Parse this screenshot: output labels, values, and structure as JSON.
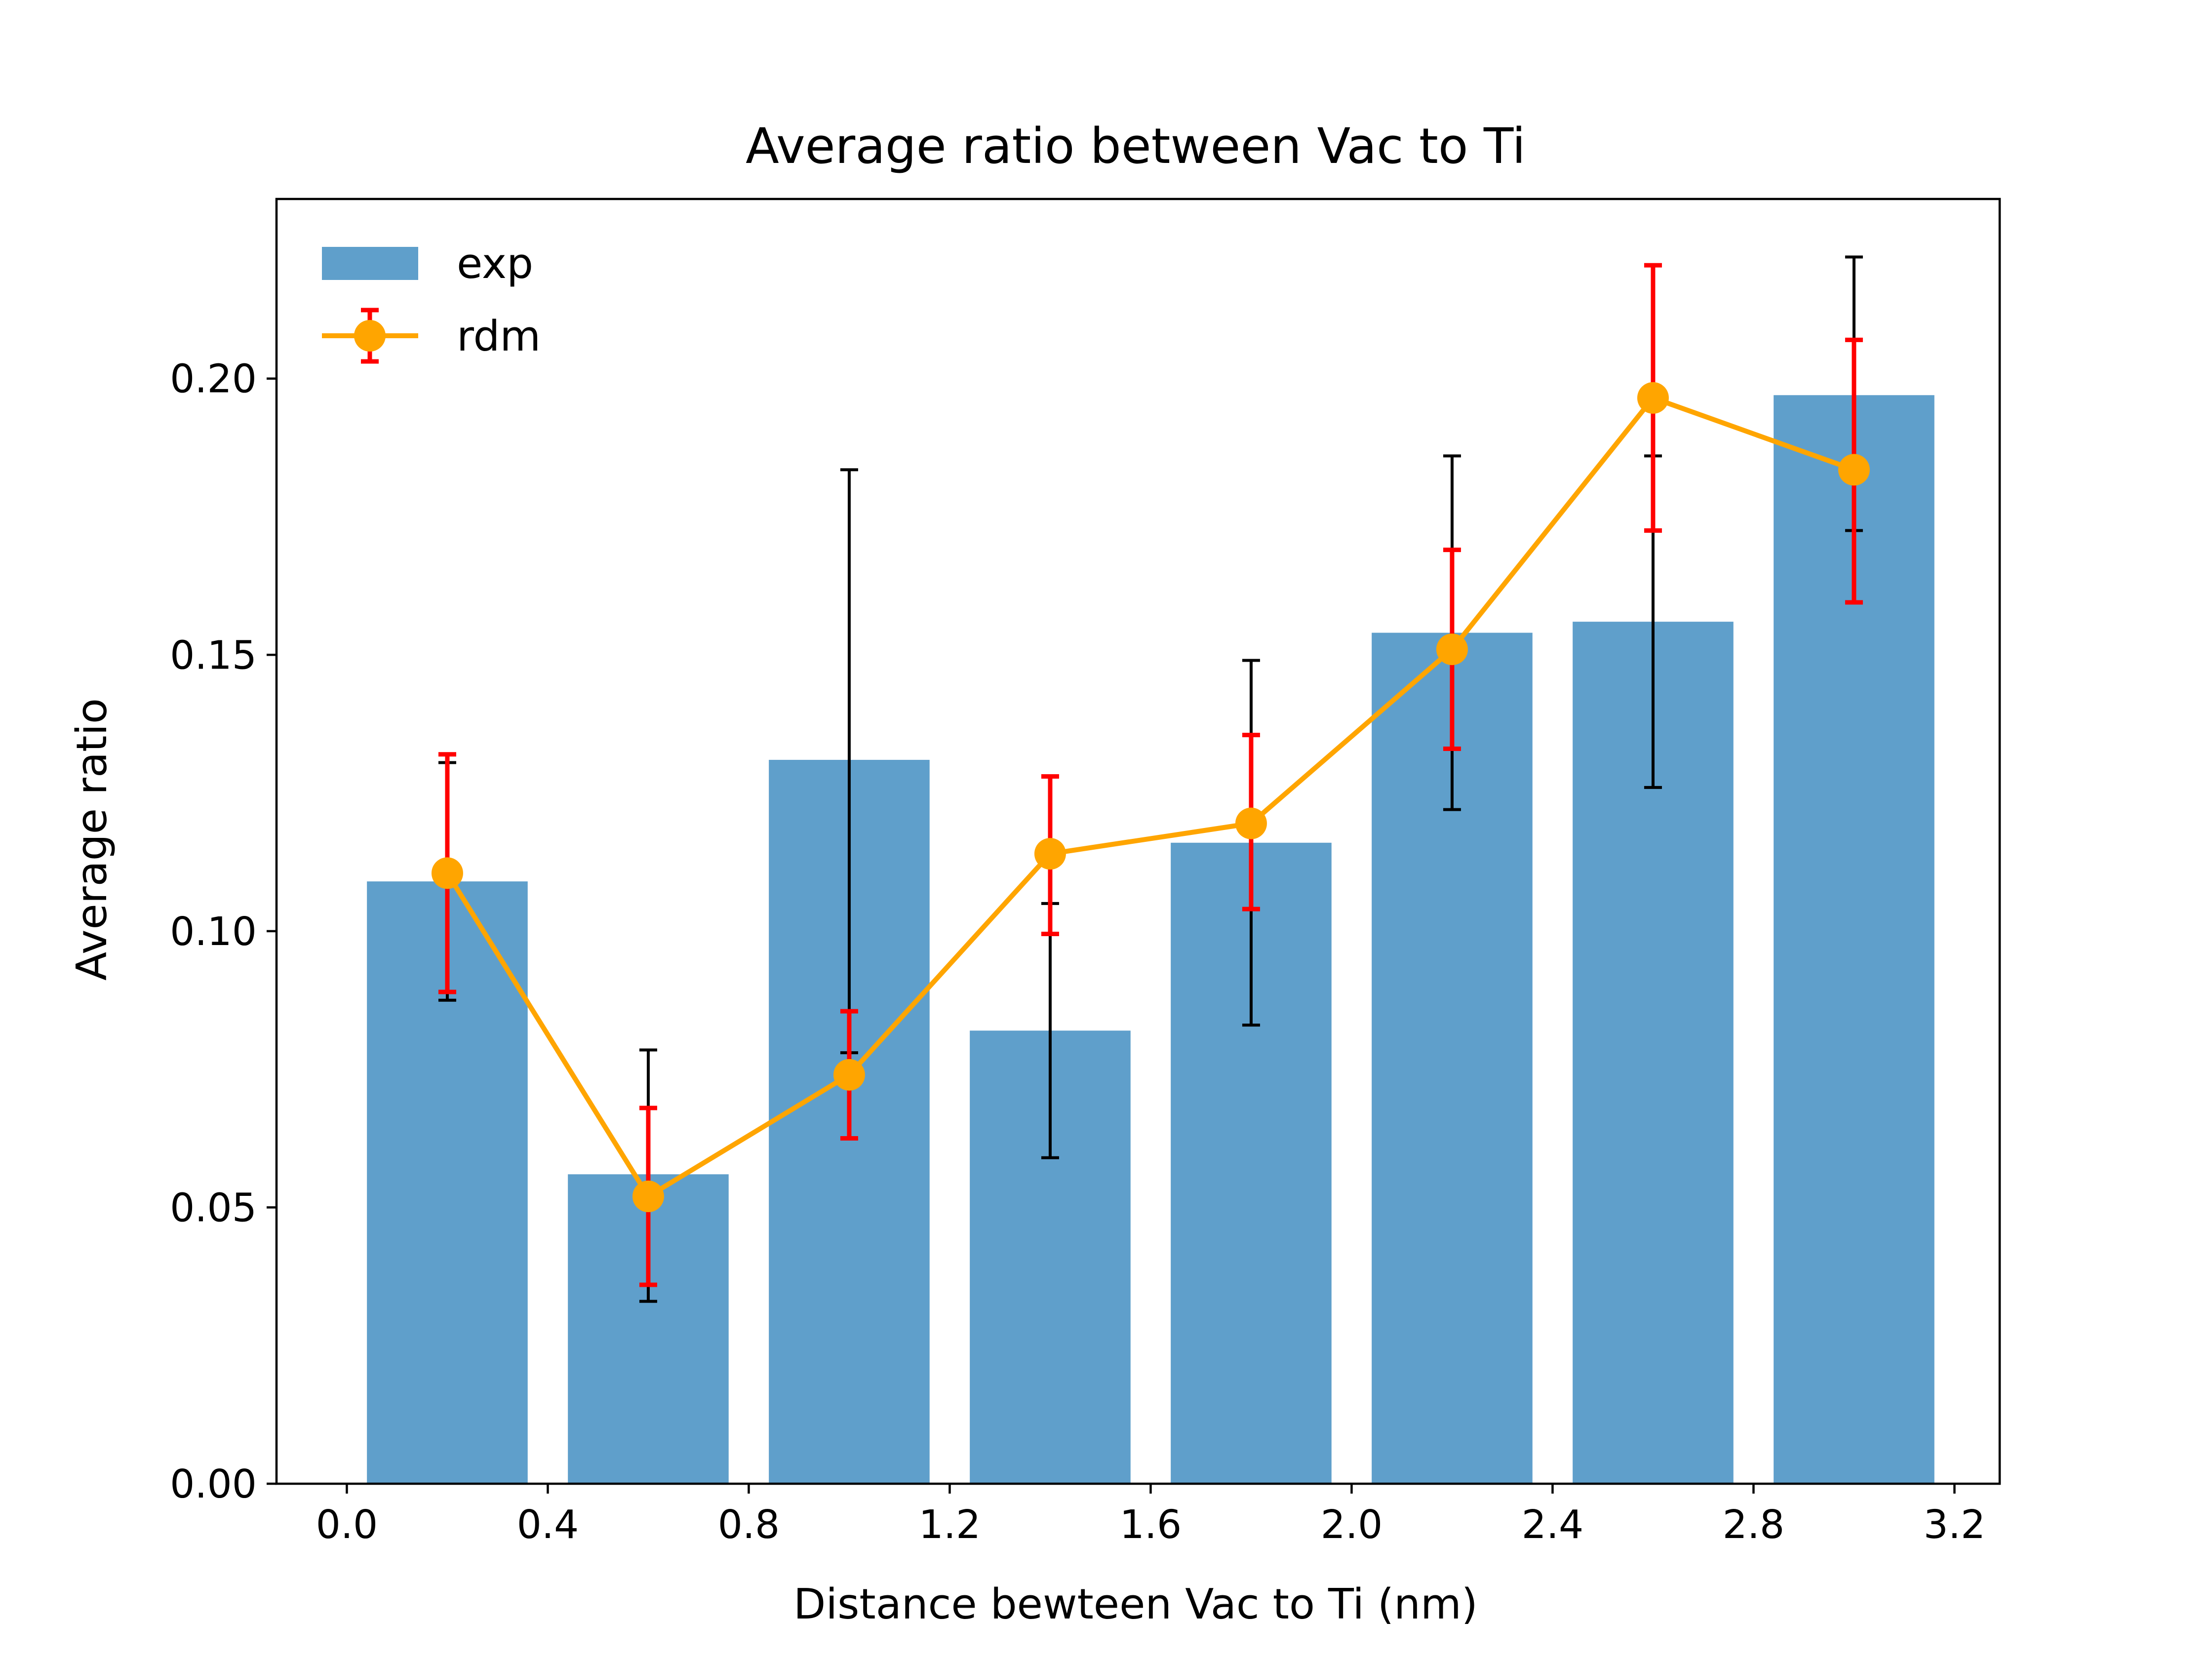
{
  "chart_data": {
    "type": "bar",
    "title": "Average ratio between Vac to Ti",
    "xlabel": "Distance bewteen Vac to Ti (nm)",
    "ylabel": "Average ratio",
    "xlim": [
      -0.14,
      3.29
    ],
    "ylim": [
      0,
      0.2325
    ],
    "xticks": [
      "0.0",
      "0.4",
      "0.8",
      "1.2",
      "1.6",
      "2.0",
      "2.4",
      "2.8",
      "3.2"
    ],
    "yticks": [
      "0.00",
      "0.05",
      "0.10",
      "0.15",
      "0.20"
    ],
    "grid": false,
    "legend_position": "top-left",
    "bar_width": 0.32,
    "x": [
      0.2,
      0.6,
      1.0,
      1.4,
      1.8,
      2.2,
      2.6,
      3.0
    ],
    "series": [
      {
        "name": "exp",
        "kind": "bar",
        "color": "#5f9fcb",
        "errorbar_color": "#000000",
        "values": [
          0.109,
          0.056,
          0.131,
          0.082,
          0.116,
          0.154,
          0.156,
          0.197
        ],
        "err_low": [
          0.0875,
          0.033,
          0.078,
          0.059,
          0.083,
          0.122,
          0.126,
          0.1725
        ],
        "err_high": [
          0.1305,
          0.0785,
          0.1835,
          0.105,
          0.149,
          0.186,
          0.186,
          0.222
        ]
      },
      {
        "name": "rdm",
        "kind": "line",
        "color": "#ffa500",
        "errorbar_color": "#ff0000",
        "values": [
          0.1105,
          0.052,
          0.074,
          0.114,
          0.1195,
          0.151,
          0.1965,
          0.1835
        ],
        "err_low": [
          0.089,
          0.036,
          0.0625,
          0.0995,
          0.104,
          0.133,
          0.1725,
          0.1595
        ],
        "err_high": [
          0.132,
          0.068,
          0.0855,
          0.128,
          0.1355,
          0.169,
          0.2205,
          0.207
        ]
      }
    ]
  }
}
